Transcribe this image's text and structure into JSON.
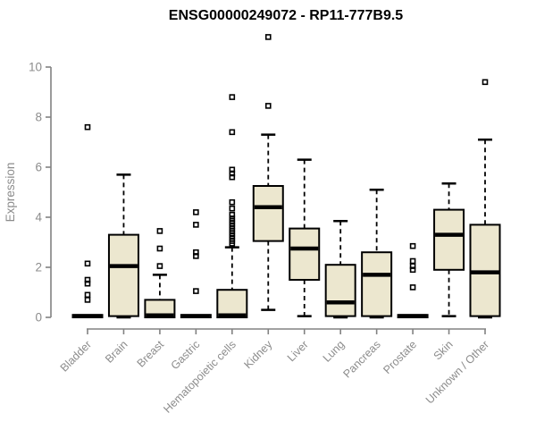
{
  "chart_data": {
    "type": "boxplot",
    "title": "ENSG00000249072 - RP11-777B9.5",
    "xlabel": "",
    "ylabel": "Expression",
    "ylim": [
      -0.5,
      11.5
    ],
    "yticks": [
      0,
      2,
      4,
      6,
      8,
      10
    ],
    "grid": false,
    "legend": "none",
    "categories": [
      "Bladder",
      "Brain",
      "Breast",
      "Gastric",
      "Hematopoietic cells",
      "Kidney",
      "Liver",
      "Lung",
      "Pancreas",
      "Prostate",
      "Skin",
      "Unknown / Other"
    ],
    "boxes": [
      {
        "label": "Bladder",
        "whisker_low": 0,
        "q1": 0,
        "median": 0.05,
        "q3": 0.1,
        "whisker_high": 0.1,
        "outliers": [
          0.7,
          0.9,
          1.35,
          1.5,
          2.15,
          7.6
        ]
      },
      {
        "label": "Brain",
        "whisker_low": 0,
        "q1": 0.05,
        "median": 2.05,
        "q3": 3.3,
        "whisker_high": 5.7,
        "outliers": []
      },
      {
        "label": "Breast",
        "whisker_low": 0,
        "q1": 0,
        "median": 0.08,
        "q3": 0.7,
        "whisker_high": 1.7,
        "outliers": [
          2.05,
          2.75,
          3.45
        ]
      },
      {
        "label": "Gastric",
        "whisker_low": 0,
        "q1": 0,
        "median": 0.05,
        "q3": 0.1,
        "whisker_high": 0.1,
        "outliers": [
          1.05,
          2.45,
          2.6,
          3.7,
          4.2
        ]
      },
      {
        "label": "Hematopoietic cells",
        "whisker_low": 0,
        "q1": 0,
        "median": 0.08,
        "q3": 1.1,
        "whisker_high": 2.8,
        "outliers": [
          2.95,
          3.05,
          3.15,
          3.25,
          3.35,
          3.45,
          3.55,
          3.65,
          3.75,
          3.85,
          3.95,
          4.1,
          4.35,
          4.6,
          5.6,
          5.75,
          5.9,
          7.4,
          8.8
        ]
      },
      {
        "label": "Kidney",
        "whisker_low": 0.3,
        "q1": 3.05,
        "median": 4.4,
        "q3": 5.25,
        "whisker_high": 7.3,
        "outliers": [
          8.45,
          11.2
        ]
      },
      {
        "label": "Liver",
        "whisker_low": 0.05,
        "q1": 1.5,
        "median": 2.75,
        "q3": 3.55,
        "whisker_high": 6.3,
        "outliers": []
      },
      {
        "label": "Lung",
        "whisker_low": 0,
        "q1": 0.05,
        "median": 0.6,
        "q3": 2.1,
        "whisker_high": 3.85,
        "outliers": []
      },
      {
        "label": "Pancreas",
        "whisker_low": 0,
        "q1": 0.05,
        "median": 1.7,
        "q3": 2.6,
        "whisker_high": 5.1,
        "outliers": []
      },
      {
        "label": "Prostate",
        "whisker_low": 0,
        "q1": 0,
        "median": 0.05,
        "q3": 0.1,
        "whisker_high": 0.1,
        "outliers": [
          1.2,
          1.9,
          2.05,
          2.25,
          2.85
        ]
      },
      {
        "label": "Skin",
        "whisker_low": 0.05,
        "q1": 1.9,
        "median": 3.3,
        "q3": 4.3,
        "whisker_high": 5.35,
        "outliers": []
      },
      {
        "label": "Unknown / Other",
        "whisker_low": 0,
        "q1": 0.05,
        "median": 1.8,
        "q3": 3.7,
        "whisker_high": 7.1,
        "outliers": [
          9.4
        ]
      }
    ],
    "colors": {
      "background": "#ffffff",
      "box_fill": "#ece7cf",
      "box_border": "#000000",
      "median": "#000000",
      "whisker": "#000000",
      "outlier": "#000000",
      "axis": "#828282",
      "tick_label": "#8c8c8c",
      "title": "#000000"
    }
  }
}
